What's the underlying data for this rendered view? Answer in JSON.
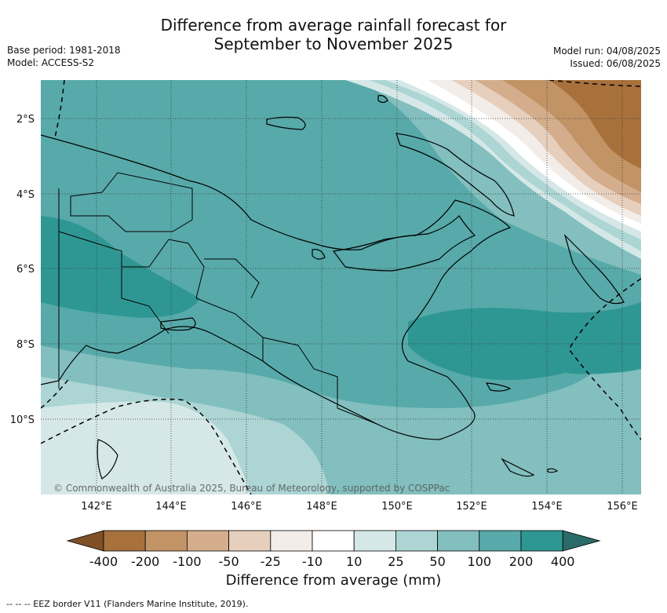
{
  "title_line1": "Difference from average rainfall forecast for",
  "title_line2": "September to November 2025",
  "meta_left": [
    "Base period: 1981-2018",
    "Model: ACCESS-S2"
  ],
  "meta_right": [
    "Model run: 04/08/2025",
    "Issued: 06/08/2025"
  ],
  "copyright": "© Commonwealth of Australia 2025, Bureau of Meteorology, supported by COSPPac",
  "lat_labels": [
    "2°S",
    "4°S",
    "6°S",
    "8°S",
    "10°S"
  ],
  "lon_labels": [
    "142°E",
    "144°E",
    "146°E",
    "148°E",
    "150°E",
    "152°E",
    "154°E",
    "156°E"
  ],
  "colorbar": {
    "title": "Difference from average (mm)",
    "tick_labels": [
      "-400",
      "-200",
      "-100",
      "-50",
      "-25",
      "-10",
      "10",
      "25",
      "50",
      "100",
      "200",
      "400"
    ],
    "colors": [
      "#7f4f26",
      "#a8713c",
      "#c29365",
      "#d3ad8c",
      "#e6cfbd",
      "#f2ede9",
      "#ffffff",
      "#d5e8e7",
      "#acd5d4",
      "#82bfbe",
      "#57aaa9",
      "#2f9793",
      "#2b6b67"
    ]
  },
  "legend_footer": "--  --  -- EEZ border V11 (Flanders Marine Institute, 2019)."
}
